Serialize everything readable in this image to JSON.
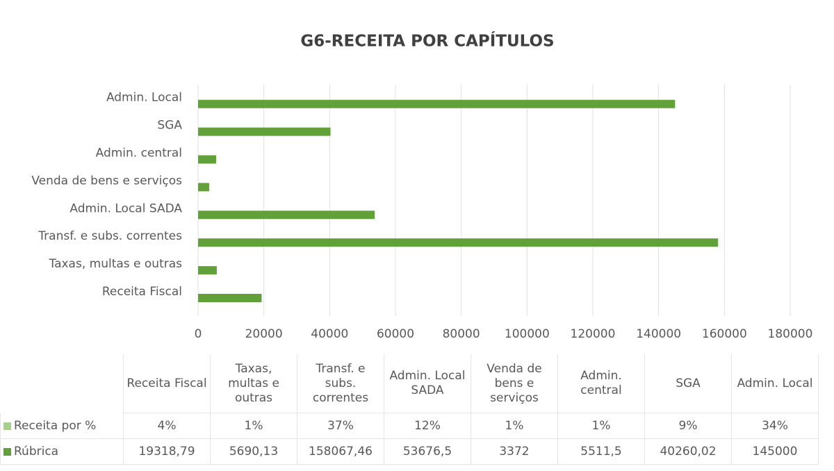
{
  "chart_data": {
    "type": "bar",
    "orientation": "horizontal",
    "title": "G6-RECEITA POR CAPÍTULOS",
    "categories": [
      "Receita Fiscal",
      "Taxas, multas e outras",
      "Transf. e subs. correntes",
      "Admin. Local SADA",
      "Venda de bens e serviços",
      "Admin. central",
      "SGA",
      "Admin. Local"
    ],
    "series": [
      {
        "name": "Receita por %",
        "color": "#a9d18e",
        "values": [
          4,
          1,
          37,
          12,
          1,
          1,
          9,
          34
        ],
        "value_labels": [
          "4%",
          "1%",
          "37%",
          "12%",
          "1%",
          "1%",
          "9%",
          "34%"
        ]
      },
      {
        "name": "Rúbrica",
        "color": "#62a03a",
        "values": [
          19318.79,
          5690.13,
          158067.46,
          53676.5,
          3372,
          5511.5,
          40260.02,
          145000
        ],
        "value_labels": [
          "19318,79",
          "5690,13",
          "158067,46",
          "53676,5",
          "3372",
          "5511,5",
          "40260,02",
          "145000"
        ]
      }
    ],
    "xlim": [
      0,
      180000
    ],
    "xticks": [
      0,
      20000,
      40000,
      60000,
      80000,
      100000,
      120000,
      140000,
      160000,
      180000
    ],
    "grid": true,
    "data_table": true
  }
}
